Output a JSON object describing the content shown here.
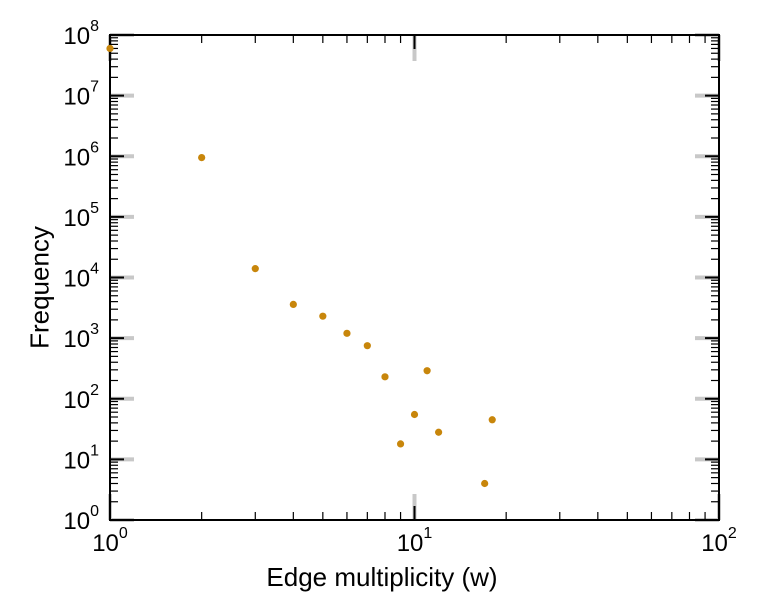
{
  "chart_data": {
    "type": "scatter",
    "title": "",
    "xlabel": "Edge multiplicity (w)",
    "ylabel": "Frequency",
    "x_scale": "log",
    "y_scale": "log",
    "xlim": [
      1,
      100
    ],
    "ylim": [
      1,
      100000000
    ],
    "x_tick_base": "10",
    "x_tick_exponents": [
      0,
      1,
      2
    ],
    "y_tick_base": "10",
    "y_tick_exponents": [
      0,
      1,
      2,
      3,
      4,
      5,
      6,
      7,
      8
    ],
    "grid": "off",
    "legend": "none",
    "marker_color": "#c8860b",
    "axis_color": "#000000",
    "gray_tick_color": "#c8c8c8",
    "points": [
      {
        "x": 1,
        "y": 60000000
      },
      {
        "x": 2,
        "y": 950000
      },
      {
        "x": 3,
        "y": 14000
      },
      {
        "x": 4,
        "y": 3600
      },
      {
        "x": 5,
        "y": 2300
      },
      {
        "x": 6,
        "y": 1200
      },
      {
        "x": 7,
        "y": 750
      },
      {
        "x": 8,
        "y": 230
      },
      {
        "x": 9,
        "y": 18
      },
      {
        "x": 10,
        "y": 55
      },
      {
        "x": 11,
        "y": 290
      },
      {
        "x": 12,
        "y": 28
      },
      {
        "x": 17,
        "y": 4
      },
      {
        "x": 18,
        "y": 45
      }
    ]
  }
}
